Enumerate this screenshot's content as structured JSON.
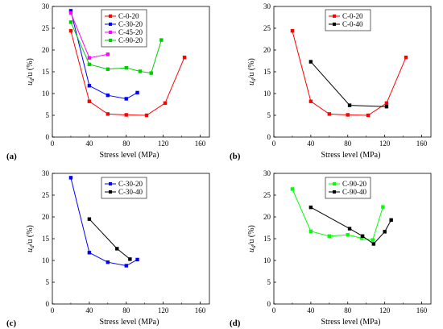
{
  "chart_data": [
    {
      "type": "line",
      "panel_label": "(a)",
      "xlabel": "Stress level (MPa)",
      "ylabel_base": "u",
      "ylabel_sub": "d",
      "ylabel_rest": "/u (%)",
      "xlim": [
        0,
        170
      ],
      "ylim": [
        0,
        30
      ],
      "xticks": [
        0,
        40,
        80,
        120,
        160
      ],
      "yticks": [
        0,
        5,
        10,
        15,
        20,
        25,
        30
      ],
      "legend_position": "top-center",
      "series": [
        {
          "name": "C-0-20",
          "color": "#ff0000",
          "x": [
            20,
            40,
            60,
            80,
            102,
            122,
            143
          ],
          "y": [
            24.4,
            8.2,
            5.3,
            5.1,
            5.0,
            7.8,
            18.3
          ]
        },
        {
          "name": "C-30-20",
          "color": "#0000ff",
          "x": [
            20,
            40,
            60,
            80,
            92
          ],
          "y": [
            29.0,
            11.8,
            9.6,
            8.8,
            10.2
          ]
        },
        {
          "name": "C-45-20",
          "color": "#ff00ff",
          "x": [
            20,
            40,
            60
          ],
          "y": [
            28.5,
            18.2,
            19.0
          ]
        },
        {
          "name": "C-90-20",
          "color": "#00cc00",
          "x": [
            20,
            40,
            60,
            80,
            95,
            107,
            118
          ],
          "y": [
            26.4,
            16.7,
            15.6,
            15.9,
            15.1,
            14.7,
            22.3
          ]
        }
      ]
    },
    {
      "type": "line",
      "panel_label": "(b)",
      "xlabel": "Stress level (MPa)",
      "ylabel_base": "u",
      "ylabel_sub": "d",
      "ylabel_rest": "/u (%)",
      "xlim": [
        0,
        170
      ],
      "ylim": [
        0,
        30
      ],
      "xticks": [
        0,
        40,
        80,
        120,
        160
      ],
      "yticks": [
        0,
        5,
        10,
        15,
        20,
        25,
        30
      ],
      "legend_position": "top-center",
      "series": [
        {
          "name": "C-0-20",
          "color": "#ff0000",
          "x": [
            20,
            40,
            60,
            80,
            102,
            122,
            143
          ],
          "y": [
            24.4,
            8.2,
            5.3,
            5.1,
            5.0,
            7.8,
            18.3
          ]
        },
        {
          "name": "C-0-40",
          "color": "#000000",
          "x": [
            40,
            82,
            122
          ],
          "y": [
            17.3,
            7.3,
            7.0
          ]
        }
      ]
    },
    {
      "type": "line",
      "panel_label": "(c)",
      "xlabel": "Stress level (MPa)",
      "ylabel_base": "u",
      "ylabel_sub": "d",
      "ylabel_rest": "/u (%)",
      "xlim": [
        0,
        170
      ],
      "ylim": [
        0,
        30
      ],
      "xticks": [
        0,
        40,
        80,
        120,
        160
      ],
      "yticks": [
        0,
        5,
        10,
        15,
        20,
        25,
        30
      ],
      "legend_position": "top-center",
      "series": [
        {
          "name": "C-30-20",
          "color": "#0000ff",
          "x": [
            20,
            40,
            60,
            80,
            92
          ],
          "y": [
            29.0,
            11.8,
            9.6,
            8.8,
            10.2
          ]
        },
        {
          "name": "C-30-40",
          "color": "#000000",
          "x": [
            40,
            70,
            84
          ],
          "y": [
            19.5,
            12.7,
            10.3
          ]
        }
      ]
    },
    {
      "type": "line",
      "panel_label": "(d)",
      "xlabel": "Stress level (MPa)",
      "ylabel_base": "u",
      "ylabel_sub": "d",
      "ylabel_rest": "/u (%)",
      "xlim": [
        0,
        170
      ],
      "ylim": [
        0,
        30
      ],
      "xticks": [
        0,
        40,
        80,
        120,
        160
      ],
      "yticks": [
        0,
        5,
        10,
        15,
        20,
        25,
        30
      ],
      "legend_position": "top-center",
      "series": [
        {
          "name": "C-90-20",
          "color": "#00ff00",
          "x": [
            20,
            40,
            60,
            80,
            95,
            107,
            118
          ],
          "y": [
            26.4,
            16.7,
            15.6,
            15.9,
            15.1,
            14.7,
            22.3
          ]
        },
        {
          "name": "C-90-40",
          "color": "#000000",
          "x": [
            40,
            82,
            96,
            108,
            120,
            127
          ],
          "y": [
            22.2,
            17.3,
            15.6,
            13.8,
            16.6,
            19.3
          ]
        }
      ]
    }
  ]
}
